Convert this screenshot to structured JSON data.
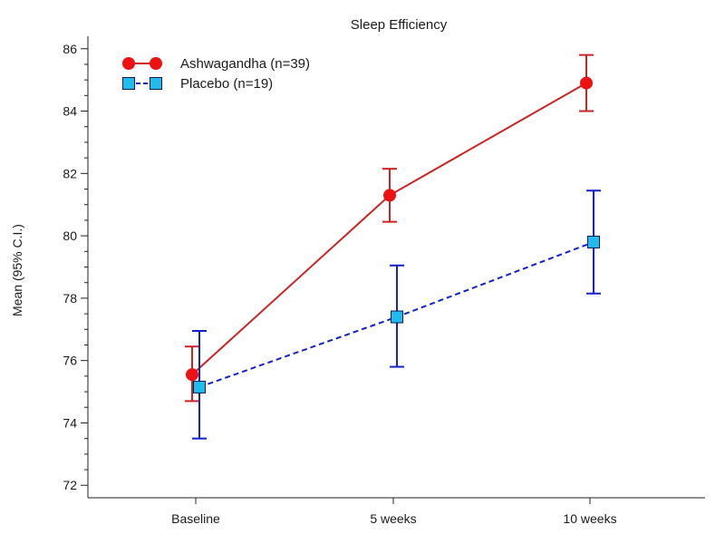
{
  "chart_data": {
    "type": "line",
    "title": "Sleep Efficiency",
    "xlabel": "",
    "ylabel": "Mean (95% C.I.)",
    "categories": [
      "Baseline",
      "5 weeks",
      "10 weeks"
    ],
    "ylim": [
      71.6,
      86.4
    ],
    "yticks": [
      72,
      74,
      76,
      78,
      80,
      82,
      84,
      86
    ],
    "grid": false,
    "legend": "top-left",
    "series": [
      {
        "name": "Ashwagandha (n=39)",
        "values": [
          75.55,
          81.3,
          84.9
        ],
        "ci_low": [
          74.7,
          80.45,
          84.0
        ],
        "ci_high": [
          76.45,
          82.15,
          85.8
        ],
        "color": "#ee1111",
        "line_color": "#cc2222",
        "marker": "circle",
        "line_style": "solid"
      },
      {
        "name": "Placebo (n=19)",
        "values": [
          75.15,
          77.4,
          79.8
        ],
        "ci_low": [
          73.5,
          75.8,
          78.15
        ],
        "ci_high": [
          76.95,
          79.05,
          81.45
        ],
        "color": "#22bbee",
        "line_color": "#1122cc",
        "marker": "square",
        "line_style": "dashed"
      }
    ]
  }
}
